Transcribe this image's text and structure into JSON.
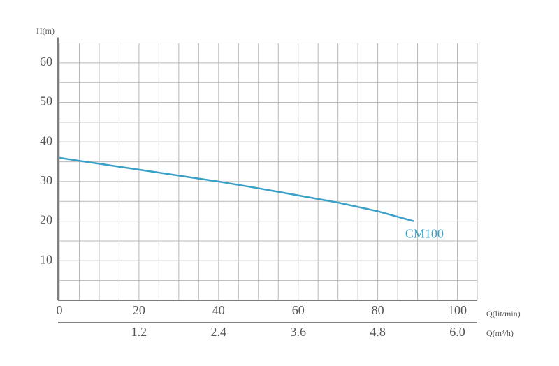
{
  "chart_data": {
    "type": "line",
    "y_label": "H(m)",
    "x_label": "Q(lit/min)",
    "x2_label": "Q(m³/h)",
    "x": [
      0,
      10,
      20,
      30,
      40,
      50,
      60,
      70,
      80,
      89
    ],
    "series": [
      {
        "name": "CM100",
        "color": "#3aa0c8",
        "values": [
          36,
          34.5,
          33,
          31.5,
          30,
          28.3,
          26.5,
          24.7,
          22.5,
          20
        ]
      }
    ],
    "xlim": [
      0,
      105
    ],
    "xticks": [
      0,
      20,
      40,
      60,
      80,
      100
    ],
    "x2lim": [
      0,
      6.3
    ],
    "x2ticks": [
      1.2,
      2.4,
      3.6,
      4.8,
      {
        "value": 6,
        "label": "6.0"
      }
    ],
    "ylim": [
      0,
      65
    ],
    "yticks": [
      10,
      20,
      30,
      40,
      50,
      60
    ],
    "x_minor_ticks": [
      5,
      10,
      15,
      25,
      30,
      35,
      45,
      50,
      55,
      65,
      70,
      75,
      85,
      90,
      95,
      105
    ],
    "y_minor_ticks": [
      5,
      15,
      25,
      35,
      45,
      55,
      65
    ],
    "grid": true
  }
}
